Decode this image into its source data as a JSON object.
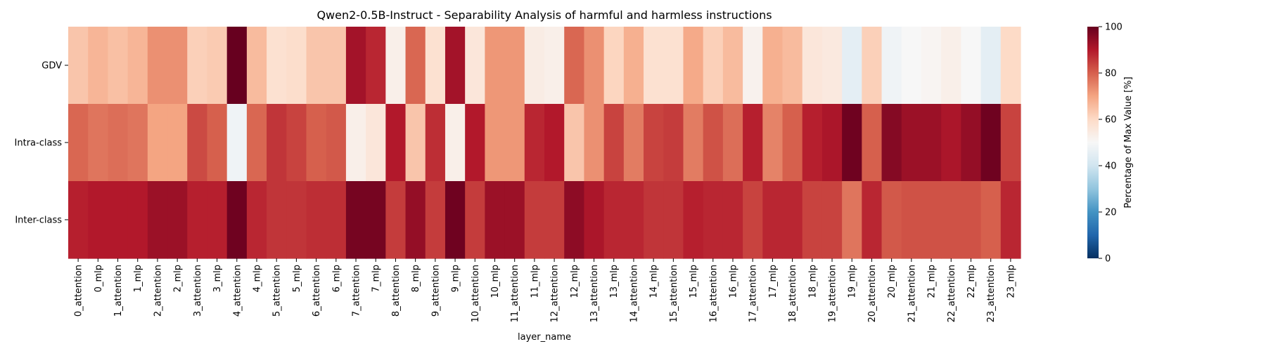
{
  "chart_data": {
    "type": "heatmap",
    "title": "Qwen2-0.5B-Instruct - Separability Analysis of harmful and harmless instructions",
    "xlabel": "layer_name",
    "ylabel": "",
    "rows": [
      "GDV",
      "Intra-class",
      "Inter-class"
    ],
    "columns": [
      "0_attention",
      "0_mlp",
      "1_attention",
      "1_mlp",
      "2_attention",
      "2_mlp",
      "3_attention",
      "3_mlp",
      "4_attention",
      "4_mlp",
      "5_attention",
      "5_mlp",
      "6_attention",
      "6_mlp",
      "7_attention",
      "7_mlp",
      "8_attention",
      "8_mlp",
      "9_attention",
      "9_mlp",
      "10_attention",
      "10_mlp",
      "11_attention",
      "11_mlp",
      "12_attention",
      "12_mlp",
      "13_attention",
      "13_mlp",
      "14_attention",
      "14_mlp",
      "15_attention",
      "15_mlp",
      "16_attention",
      "16_mlp",
      "17_attention",
      "17_mlp",
      "18_attention",
      "18_mlp",
      "19_attention",
      "19_mlp",
      "20_attention",
      "20_mlp",
      "21_attention",
      "21_mlp",
      "22_attention",
      "22_mlp",
      "23_attention",
      "23_mlp"
    ],
    "values": [
      [
        64,
        67,
        65,
        67,
        73,
        73,
        62,
        63,
        100,
        66,
        58,
        59,
        64,
        64,
        92,
        88,
        53,
        79,
        58,
        92,
        56,
        72,
        72,
        54,
        53,
        79,
        73,
        61,
        68,
        58,
        58,
        69,
        62,
        66,
        52,
        68,
        66,
        56,
        55,
        45,
        62,
        48,
        50,
        51,
        53,
        50,
        45,
        60
      ],
      [
        79,
        77,
        78,
        77,
        70,
        70,
        83,
        80,
        48,
        79,
        86,
        84,
        80,
        81,
        53,
        56,
        90,
        64,
        87,
        53,
        90,
        72,
        72,
        88,
        90,
        64,
        73,
        84,
        76,
        84,
        85,
        76,
        82,
        78,
        89,
        75,
        80,
        89,
        91,
        99,
        80,
        96,
        93,
        93,
        91,
        94,
        99,
        84
      ],
      [
        89,
        90,
        90,
        90,
        93,
        93,
        89,
        89,
        99,
        88,
        86,
        86,
        87,
        87,
        98,
        98,
        85,
        94,
        85,
        99,
        85,
        93,
        93,
        85,
        85,
        95,
        91,
        88,
        88,
        86,
        86,
        89,
        88,
        88,
        84,
        88,
        88,
        84,
        84,
        77,
        88,
        81,
        82,
        82,
        82,
        82,
        80,
        88
      ]
    ],
    "colorbar": {
      "label": "Percentage of Max Value [%]",
      "min": 0,
      "max": 100,
      "ticks": [
        0,
        20,
        40,
        60,
        80,
        100
      ],
      "colormap": "RdBu_r"
    },
    "colormap_stops": [
      [
        0.0,
        "#053061"
      ],
      [
        0.1,
        "#2166ac"
      ],
      [
        0.2,
        "#4393c3"
      ],
      [
        0.3,
        "#92c5de"
      ],
      [
        0.4,
        "#d1e5f0"
      ],
      [
        0.5,
        "#f7f7f7"
      ],
      [
        0.6,
        "#fddbc7"
      ],
      [
        0.7,
        "#f4a582"
      ],
      [
        0.8,
        "#d6604d"
      ],
      [
        0.9,
        "#b2182b"
      ],
      [
        1.0,
        "#67001f"
      ]
    ]
  }
}
